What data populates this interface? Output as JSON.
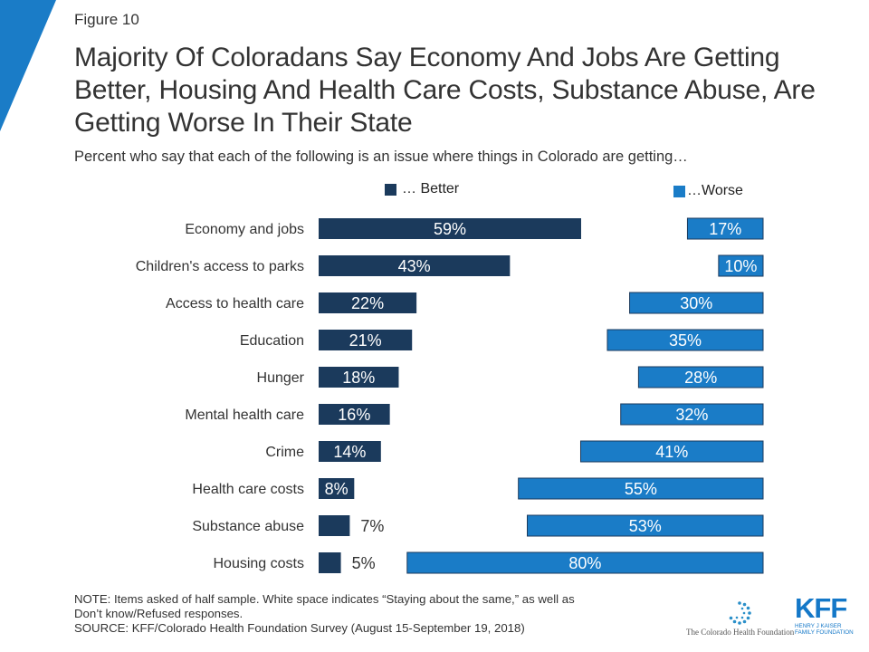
{
  "figure_label": "Figure 10",
  "title": "Majority Of Coloradans Say Economy And Jobs Are Getting Better, Housing And Health Care Costs, Substance Abuse, Are Getting Worse In Their State",
  "subtitle": "Percent who say that each of the following is an issue where things in Colorado are getting…",
  "colors": {
    "better": "#1b3a5c",
    "worse": "#1a7cc7",
    "corner": "#1a7cc7"
  },
  "chart_data": {
    "type": "bar",
    "orientation": "horizontal",
    "categories": [
      "Economy and jobs",
      "Children's access to parks",
      "Access to health care",
      "Education",
      "Hunger",
      "Mental health care",
      "Crime",
      "Health care costs",
      "Substance abuse",
      "Housing costs"
    ],
    "series": [
      {
        "name": "… Better",
        "values": [
          59,
          43,
          22,
          21,
          18,
          16,
          14,
          8,
          7,
          5
        ],
        "labels": [
          "59%",
          "43%",
          "22%",
          "21%",
          "18%",
          "16%",
          "14%",
          "8%",
          "7%",
          "5%"
        ]
      },
      {
        "name": "…Worse",
        "values": [
          17,
          10,
          30,
          35,
          28,
          32,
          41,
          55,
          53,
          80
        ],
        "labels": [
          "17%",
          "10%",
          "30%",
          "35%",
          "28%",
          "32%",
          "41%",
          "55%",
          "53%",
          "80%"
        ]
      }
    ],
    "legend_position": "top",
    "grid": false
  },
  "notes": [
    "NOTE: Items asked of half sample. White space indicates “Staying about the same,” as well as",
    "Don’t know/Refused responses.",
    "SOURCE: KFF/Colorado Health Foundation Survey (August 15-September 19, 2018)"
  ],
  "logos": {
    "chf_text": "The Colorado Health Foundation",
    "kff_mark": "KFF",
    "kff_line1": "HENRY J KAISER",
    "kff_line2": "FAMILY FOUNDATION"
  }
}
